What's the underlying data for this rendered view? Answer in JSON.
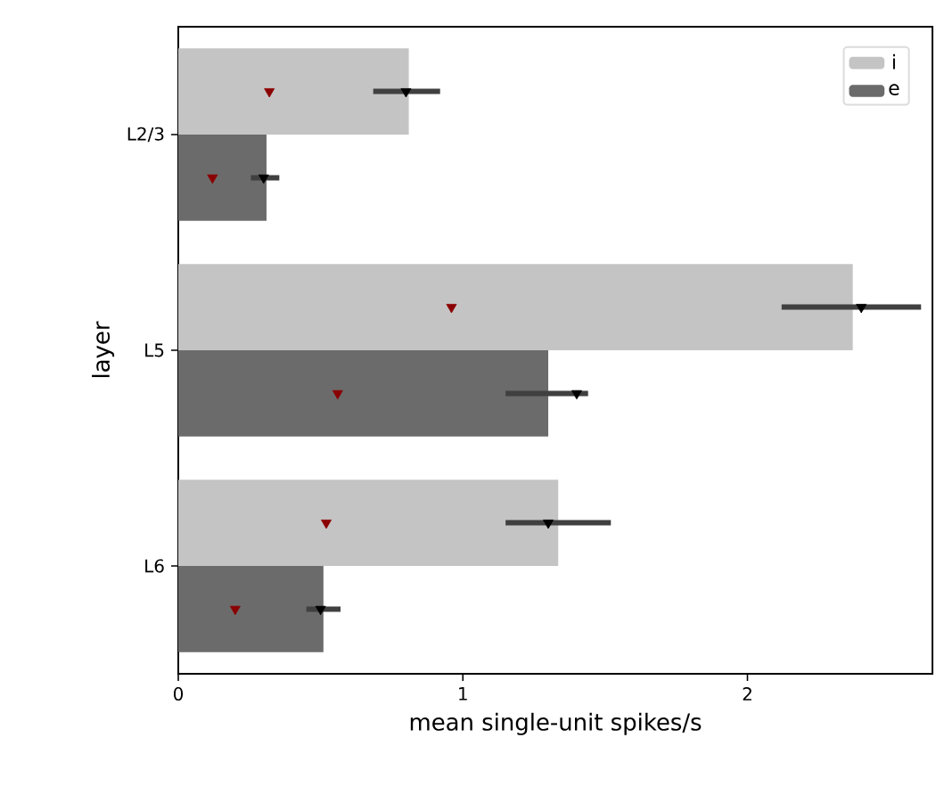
{
  "chart_data": {
    "type": "bar",
    "orientation": "horizontal",
    "xlabel": "mean single-unit spikes/s",
    "ylabel": "layer",
    "categories": [
      "L2/3",
      "L5",
      "L6"
    ],
    "xlim": [
      0,
      2.65
    ],
    "xticks": [
      0,
      1,
      2
    ],
    "legend": "top right",
    "series": [
      {
        "name": "i",
        "type": "bar",
        "color": "#c4c4c4",
        "values": [
          0.81,
          2.37,
          1.335
        ]
      },
      {
        "name": "e",
        "type": "bar",
        "color": "#6b6b6b",
        "values": [
          0.31,
          1.3,
          0.51
        ]
      },
      {
        "type": "scatter",
        "marker": "triangle",
        "color": "#000000",
        "values": [
          0.8,
          2.4,
          1.3
        ],
        "errors": [
          [
            0.685,
            0.92
          ],
          [
            2.12,
            2.61
          ],
          [
            1.15,
            1.52
          ]
        ]
      },
      {
        "type": "scatter",
        "marker": "triangle",
        "color": "#000000",
        "values": [
          0.3,
          1.4,
          0.5
        ],
        "errors": [
          [
            0.255,
            0.355
          ],
          [
            1.15,
            1.44
          ],
          [
            0.45,
            0.57
          ]
        ]
      },
      {
        "type": "scatter",
        "marker": "triangle",
        "color": "#8b0000",
        "values": [
          0.32,
          0.96,
          0.52
        ]
      },
      {
        "type": "scatter",
        "marker": "triangle",
        "color": "#8b0000",
        "values": [
          0.12,
          0.56,
          0.2
        ]
      }
    ]
  }
}
